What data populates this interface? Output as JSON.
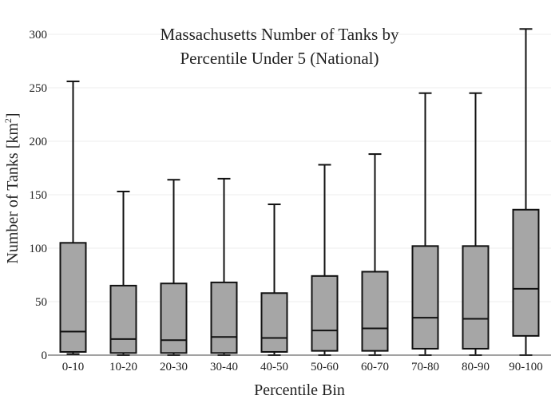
{
  "chart_data": {
    "type": "box",
    "title_lines": [
      "Massachusetts Number of Tanks by",
      "Percentile Under 5 (National)"
    ],
    "xlabel": "Percentile Bin",
    "ylabel": "Number of Tanks  [km",
    "ylabel_sup": "2",
    "ylabel_close": "]",
    "ylim": [
      0,
      310
    ],
    "yticks": [
      0,
      50,
      100,
      150,
      200,
      250,
      300
    ],
    "grid": true,
    "categories": [
      "0-10",
      "10-20",
      "20-30",
      "30-40",
      "40-50",
      "50-60",
      "60-70",
      "70-80",
      "80-90",
      "90-100"
    ],
    "boxes": [
      {
        "whislo": 1,
        "q1": 3,
        "med": 22,
        "q3": 105,
        "whishi": 256
      },
      {
        "whislo": 0,
        "q1": 2,
        "med": 15,
        "q3": 65,
        "whishi": 153
      },
      {
        "whislo": 0,
        "q1": 2,
        "med": 14,
        "q3": 67,
        "whishi": 164
      },
      {
        "whislo": 0,
        "q1": 2,
        "med": 17,
        "q3": 68,
        "whishi": 165
      },
      {
        "whislo": 0,
        "q1": 3,
        "med": 16,
        "q3": 58,
        "whishi": 141
      },
      {
        "whislo": 0,
        "q1": 4,
        "med": 23,
        "q3": 74,
        "whishi": 178
      },
      {
        "whislo": 0,
        "q1": 4,
        "med": 25,
        "q3": 78,
        "whishi": 188
      },
      {
        "whislo": 0,
        "q1": 6,
        "med": 35,
        "q3": 102,
        "whishi": 245
      },
      {
        "whislo": 0,
        "q1": 6,
        "med": 34,
        "q3": 102,
        "whishi": 245
      },
      {
        "whislo": 0,
        "q1": 18,
        "med": 62,
        "q3": 136,
        "whishi": 305
      }
    ],
    "box_color": "#a6a6a6",
    "line_color": "#111111"
  }
}
